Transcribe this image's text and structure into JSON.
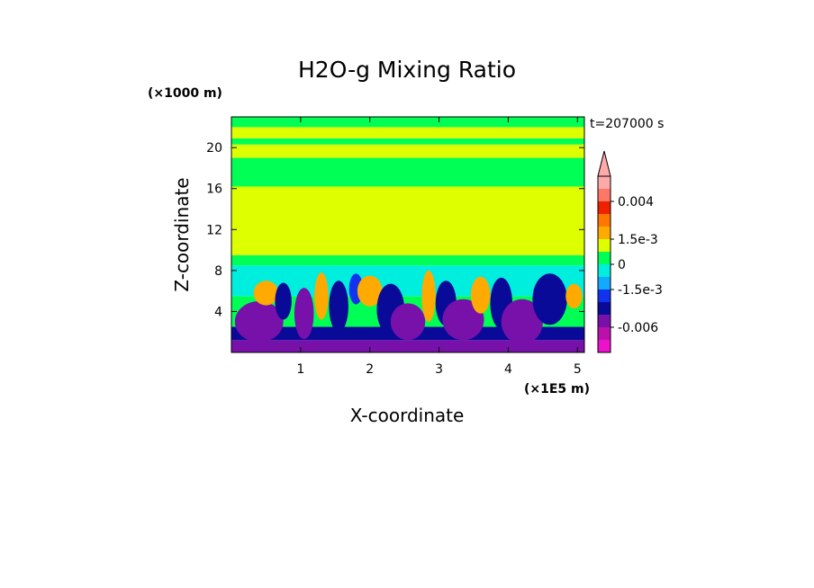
{
  "chart_data": {
    "type": "heatmap",
    "title": "H2O-g Mixing Ratio",
    "xlabel": "X-coordinate",
    "ylabel": "Z-coordinate",
    "x_scale_label": "(×1E5 m)",
    "y_scale_label": "(×1000 m)",
    "time_label": "t=207000 s",
    "xlim": [
      0,
      5.1
    ],
    "ylim": [
      0,
      23
    ],
    "x_ticks": [
      {
        "value": 1,
        "label": "1"
      },
      {
        "value": 2,
        "label": "2"
      },
      {
        "value": 3,
        "label": "3"
      },
      {
        "value": 4,
        "label": "4"
      },
      {
        "value": 5,
        "label": "5"
      }
    ],
    "y_ticks": [
      {
        "value": 4,
        "label": "4"
      },
      {
        "value": 8,
        "label": "8"
      },
      {
        "value": 12,
        "label": "12"
      },
      {
        "value": 16,
        "label": "16"
      },
      {
        "value": 20,
        "label": "20"
      }
    ],
    "colorbar": {
      "colors": [
        "#ee11cc",
        "#bb11aa",
        "#7711aa",
        "#0a0a99",
        "#1133ee",
        "#11aaff",
        "#00eedd",
        "#00ff55",
        "#ddff00",
        "#ffaa00",
        "#ff7700",
        "#ee2200",
        "#ff7766",
        "#ffaaaa"
      ],
      "levels": [
        -0.009,
        -0.0075,
        -0.006,
        -0.0045,
        -0.003,
        -0.0015,
        -0.001,
        0,
        0.0005,
        0.0015,
        0.002,
        0.003,
        0.004,
        0.005
      ],
      "tick_labels": [
        {
          "level": 0.004,
          "label": "0.004"
        },
        {
          "level": 0.0015,
          "label": "1.5e-3"
        },
        {
          "level": 0,
          "label": "0"
        },
        {
          "level": -0.0015,
          "label": "-1.5e-3"
        },
        {
          "level": -0.006,
          "label": "-0.006"
        }
      ]
    },
    "layers": [
      {
        "band": [
          0,
          1.2
        ],
        "color": "#7711aa"
      },
      {
        "band": [
          1.2,
          2.5
        ],
        "color": "#0a0a99"
      },
      {
        "band": [
          2.5,
          5.5
        ],
        "color": "#00ff55"
      },
      {
        "band": [
          5.5,
          8.5
        ],
        "color": "#00eedd"
      },
      {
        "band": [
          8.5,
          9.5
        ],
        "color": "#00ff55"
      },
      {
        "band": [
          9.5,
          16.2
        ],
        "color": "#ddff00"
      },
      {
        "band": [
          16.2,
          19.0
        ],
        "color": "#00ff55"
      },
      {
        "band": [
          19.0,
          20.3
        ],
        "color": "#ddff00"
      },
      {
        "band": [
          20.3,
          20.9
        ],
        "color": "#00ff55"
      },
      {
        "band": [
          20.9,
          22.0
        ],
        "color": "#ddff00"
      },
      {
        "band": [
          22.0,
          23.0
        ],
        "color": "#00ff55"
      }
    ],
    "blobs": [
      {
        "x": 0.4,
        "z": 3.0,
        "rx": 0.35,
        "rz": 2.0,
        "color": "#7711aa"
      },
      {
        "x": 0.5,
        "z": 5.8,
        "rx": 0.18,
        "rz": 1.2,
        "color": "#ffaa00"
      },
      {
        "x": 0.75,
        "z": 5.0,
        "rx": 0.12,
        "rz": 1.8,
        "color": "#0a0a99"
      },
      {
        "x": 1.05,
        "z": 3.8,
        "rx": 0.14,
        "rz": 2.5,
        "color": "#7711aa"
      },
      {
        "x": 1.3,
        "z": 5.5,
        "rx": 0.1,
        "rz": 2.3,
        "color": "#ffaa00"
      },
      {
        "x": 1.55,
        "z": 4.5,
        "rx": 0.14,
        "rz": 2.5,
        "color": "#0a0a99"
      },
      {
        "x": 1.8,
        "z": 6.2,
        "rx": 0.1,
        "rz": 1.5,
        "color": "#1133ee"
      },
      {
        "x": 2.0,
        "z": 6.0,
        "rx": 0.18,
        "rz": 1.5,
        "color": "#ffaa00"
      },
      {
        "x": 2.3,
        "z": 4.2,
        "rx": 0.2,
        "rz": 2.5,
        "color": "#0a0a99"
      },
      {
        "x": 2.55,
        "z": 3.0,
        "rx": 0.25,
        "rz": 1.8,
        "color": "#7711aa"
      },
      {
        "x": 2.85,
        "z": 5.5,
        "rx": 0.1,
        "rz": 2.5,
        "color": "#ffaa00"
      },
      {
        "x": 3.1,
        "z": 4.8,
        "rx": 0.15,
        "rz": 2.2,
        "color": "#0a0a99"
      },
      {
        "x": 3.35,
        "z": 3.2,
        "rx": 0.3,
        "rz": 2.0,
        "color": "#7711aa"
      },
      {
        "x": 3.6,
        "z": 5.6,
        "rx": 0.14,
        "rz": 1.8,
        "color": "#ffaa00"
      },
      {
        "x": 3.9,
        "z": 4.8,
        "rx": 0.16,
        "rz": 2.5,
        "color": "#0a0a99"
      },
      {
        "x": 4.2,
        "z": 3.0,
        "rx": 0.3,
        "rz": 2.2,
        "color": "#7711aa"
      },
      {
        "x": 4.6,
        "z": 5.2,
        "rx": 0.25,
        "rz": 2.5,
        "color": "#0a0a99"
      },
      {
        "x": 4.95,
        "z": 5.5,
        "rx": 0.12,
        "rz": 1.2,
        "color": "#ffaa00"
      }
    ]
  }
}
